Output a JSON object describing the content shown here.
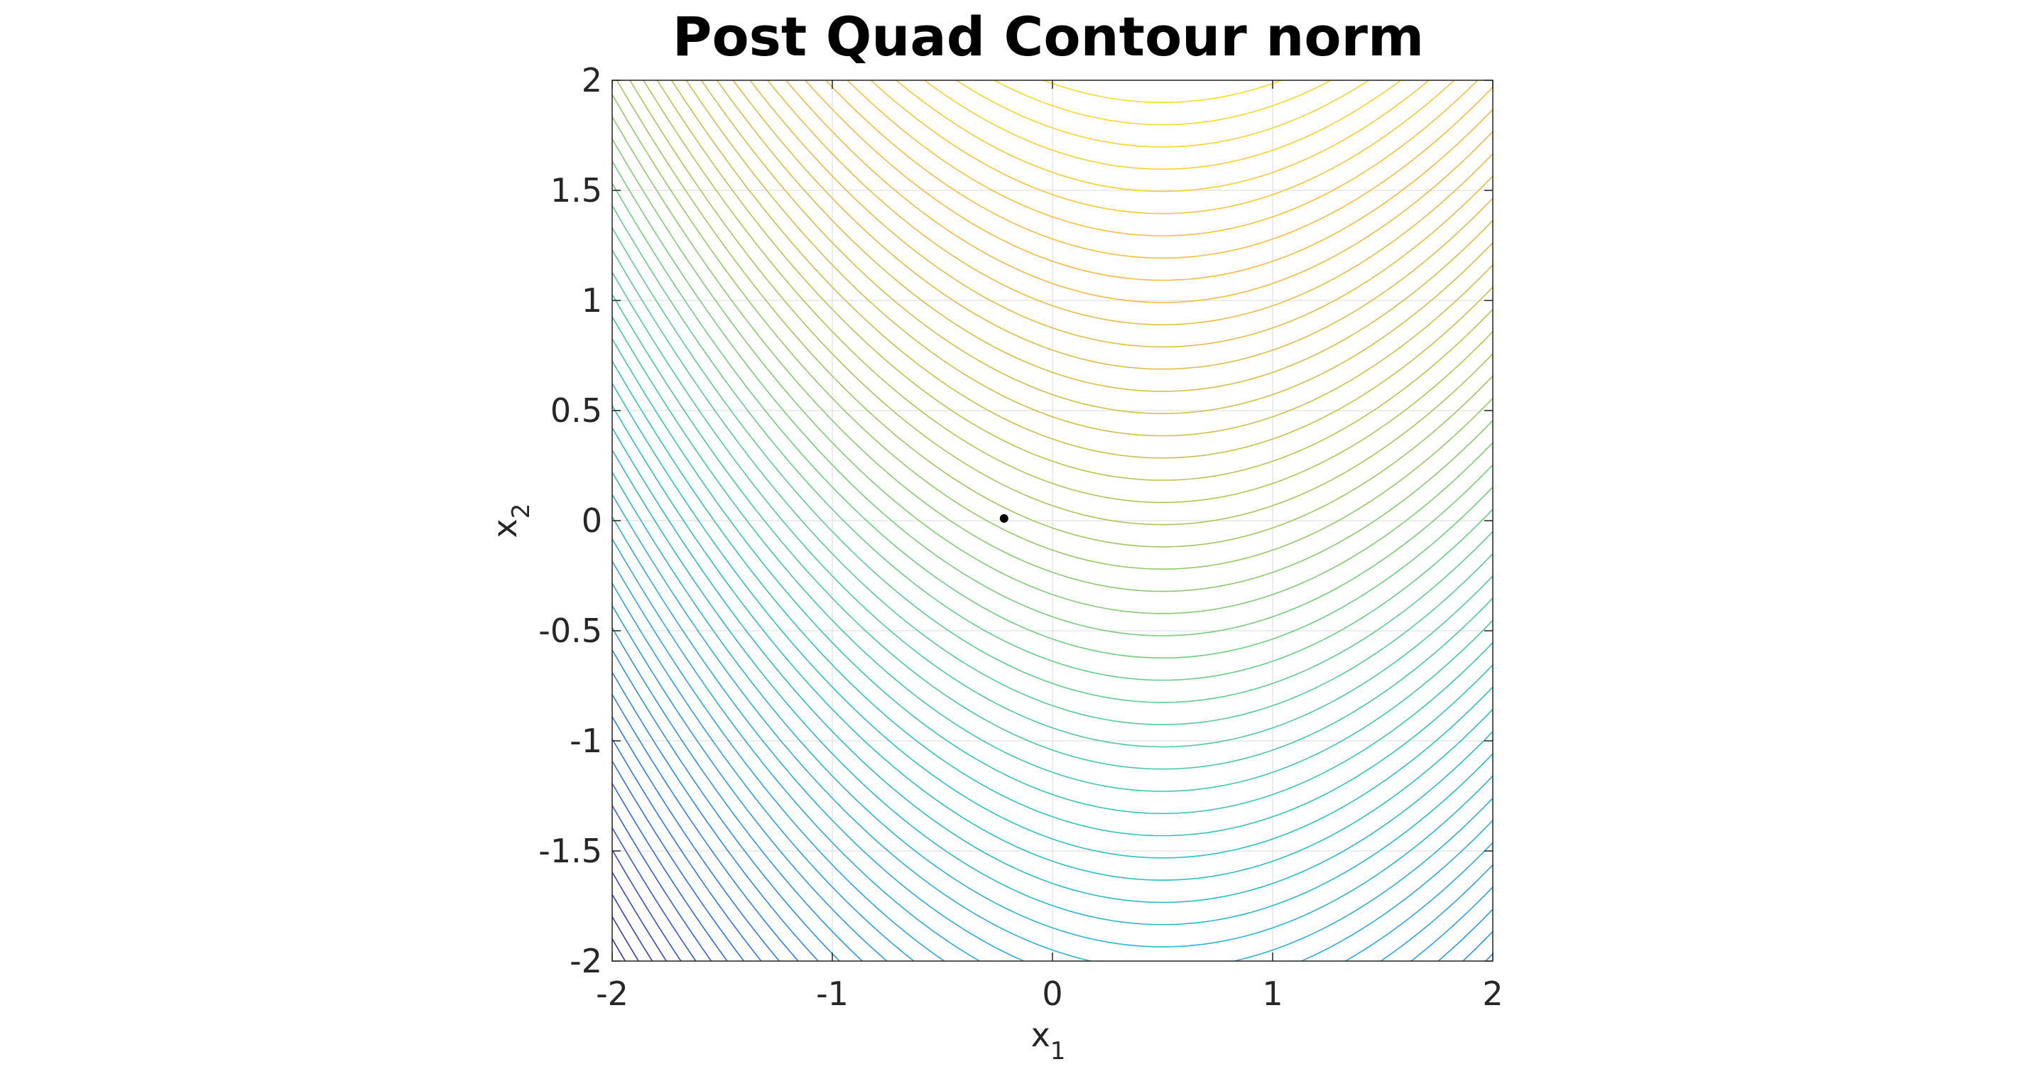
{
  "chart_data": {
    "type": "contour",
    "title": "Post Quad Contour norm",
    "xlabel": "x",
    "xlabel_sub": "1",
    "ylabel": "x",
    "ylabel_sub": "2",
    "xlim": [
      -2,
      2
    ],
    "ylim": [
      -2,
      2
    ],
    "xticks": [
      -2,
      -1,
      0,
      1,
      2
    ],
    "yticks": [
      -2,
      -1.5,
      -1,
      -0.5,
      0,
      0.5,
      1,
      1.5,
      2
    ],
    "xtick_labels": [
      "-2",
      "-1",
      "0",
      "1",
      "2"
    ],
    "ytick_labels": [
      "-2",
      "-1.5",
      "-1",
      "-0.5",
      "0",
      "0.5",
      "1",
      "1.5",
      "2"
    ],
    "grid": true,
    "aspect": "equal",
    "colormap": "parula",
    "colormap_stops": [
      "#3e26a8",
      "#2b6ef2",
      "#2ba4e5",
      "#29c4bf",
      "#6cce82",
      "#c4c148",
      "#f8ba3d",
      "#f9e221"
    ],
    "level_count": 60,
    "marker": {
      "x": -0.22,
      "y": 0.01,
      "color": "#000000"
    }
  }
}
